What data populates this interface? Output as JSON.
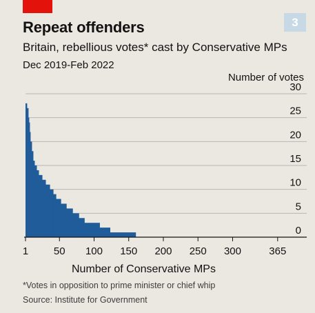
{
  "header": {
    "badge": "3",
    "title": "Repeat offenders",
    "subtitle": "Britain, rebellious votes* cast by Conservative MPs",
    "date_range": "Dec 2019-Feb 2022"
  },
  "footer": {
    "footnote": "*Votes in opposition to prime minister or chief whip",
    "source": "Source: Institute for Government"
  },
  "colors": {
    "accent": "#e3120b",
    "badge": "#c8d9e6",
    "bars": "#1f5c99",
    "grid": "#b7b7b7",
    "axis": "#121212"
  },
  "chart_data": {
    "type": "area",
    "title": "Repeat offenders",
    "subtitle": "Britain, rebellious votes* cast by Conservative MPs",
    "xlabel": "Number of Conservative MPs",
    "ylabel": "Number of votes",
    "xlim": [
      1,
      407
    ],
    "ylim": [
      0,
      30
    ],
    "x_ticks": [
      "1",
      "50",
      "100",
      "150",
      "200",
      "250",
      "300",
      "365"
    ],
    "x_tick_values": [
      1,
      50,
      100,
      150,
      200,
      250,
      300,
      365
    ],
    "y_ticks": [
      "30",
      "25",
      "20",
      "15",
      "10",
      "5",
      "0"
    ],
    "y_tick_values": [
      30,
      25,
      20,
      15,
      10,
      5,
      0
    ],
    "grid": true,
    "series": [
      {
        "steps": [
          {
            "x_start": 1,
            "x_end": 3,
            "value": 28
          },
          {
            "x_start": 3,
            "x_end": 5,
            "value": 27
          },
          {
            "x_start": 5,
            "x_end": 6,
            "value": 25
          },
          {
            "x_start": 6,
            "x_end": 7,
            "value": 24
          },
          {
            "x_start": 7,
            "x_end": 8,
            "value": 22
          },
          {
            "x_start": 8,
            "x_end": 10,
            "value": 20
          },
          {
            "x_start": 10,
            "x_end": 12,
            "value": 18
          },
          {
            "x_start": 12,
            "x_end": 14,
            "value": 16
          },
          {
            "x_start": 14,
            "x_end": 17,
            "value": 15
          },
          {
            "x_start": 17,
            "x_end": 20,
            "value": 14
          },
          {
            "x_start": 20,
            "x_end": 25,
            "value": 13
          },
          {
            "x_start": 25,
            "x_end": 30,
            "value": 12
          },
          {
            "x_start": 30,
            "x_end": 36,
            "value": 11
          },
          {
            "x_start": 36,
            "x_end": 41,
            "value": 10
          },
          {
            "x_start": 41,
            "x_end": 45,
            "value": 9
          },
          {
            "x_start": 45,
            "x_end": 52,
            "value": 8
          },
          {
            "x_start": 52,
            "x_end": 60,
            "value": 7
          },
          {
            "x_start": 60,
            "x_end": 69,
            "value": 6
          },
          {
            "x_start": 69,
            "x_end": 78,
            "value": 5
          },
          {
            "x_start": 78,
            "x_end": 86,
            "value": 4
          },
          {
            "x_start": 86,
            "x_end": 108,
            "value": 3
          },
          {
            "x_start": 108,
            "x_end": 123,
            "value": 2
          },
          {
            "x_start": 123,
            "x_end": 160,
            "value": 1
          }
        ]
      }
    ]
  }
}
